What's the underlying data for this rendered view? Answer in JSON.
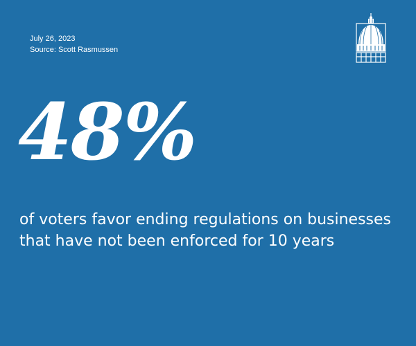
{
  "meta": {
    "date": "July 26, 2023",
    "source": "Source: Scott Rasmussen"
  },
  "stat": {
    "value": "48%",
    "description": "of voters favor ending regulations on businesses that have not been enforced for 10 years"
  },
  "logo": {
    "icon": "capitol-dome-icon"
  },
  "colors": {
    "background": "#1f6fa8",
    "text": "#ffffff"
  }
}
